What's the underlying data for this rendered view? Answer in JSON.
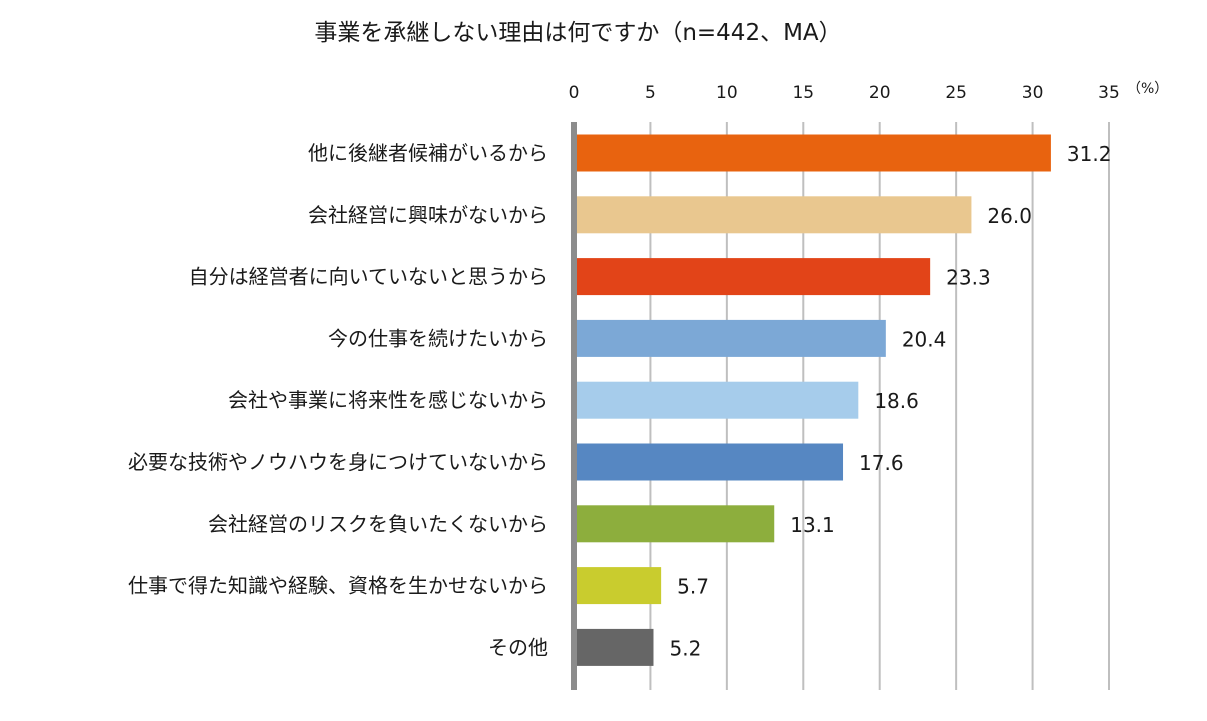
{
  "chart_data": {
    "type": "bar",
    "orientation": "horizontal",
    "title": "事業を承継しない理由は何ですか（n=442、MA）",
    "unit_label": "（%）",
    "xlim": [
      0,
      35
    ],
    "x_ticks": [
      0,
      5,
      10,
      15,
      20,
      25,
      30,
      35
    ],
    "grid": true,
    "categories": [
      "他に後継者候補がいるから",
      "会社経営に興味がないから",
      "自分は経営者に向いていないと思うから",
      "今の仕事を続けたいから",
      "会社や事業に将来性を感じないから",
      "必要な技術やノウハウを身につけていないから",
      "会社経営のリスクを負いたくないから",
      "仕事で得た知識や経験、資格を生かせないから",
      "その他"
    ],
    "values": [
      31.2,
      26.0,
      23.3,
      20.4,
      18.6,
      17.6,
      13.1,
      5.7,
      5.2
    ],
    "value_labels": [
      "31.2",
      "26.0",
      "23.3",
      "20.4",
      "18.6",
      "17.6",
      "13.1",
      "5.7",
      "5.2"
    ],
    "colors": [
      "#E8630F",
      "#E9C78F",
      "#E24418",
      "#7CA8D6",
      "#A6CCEB",
      "#5687C2",
      "#8DAE3D",
      "#C9CC2E",
      "#666666"
    ]
  }
}
